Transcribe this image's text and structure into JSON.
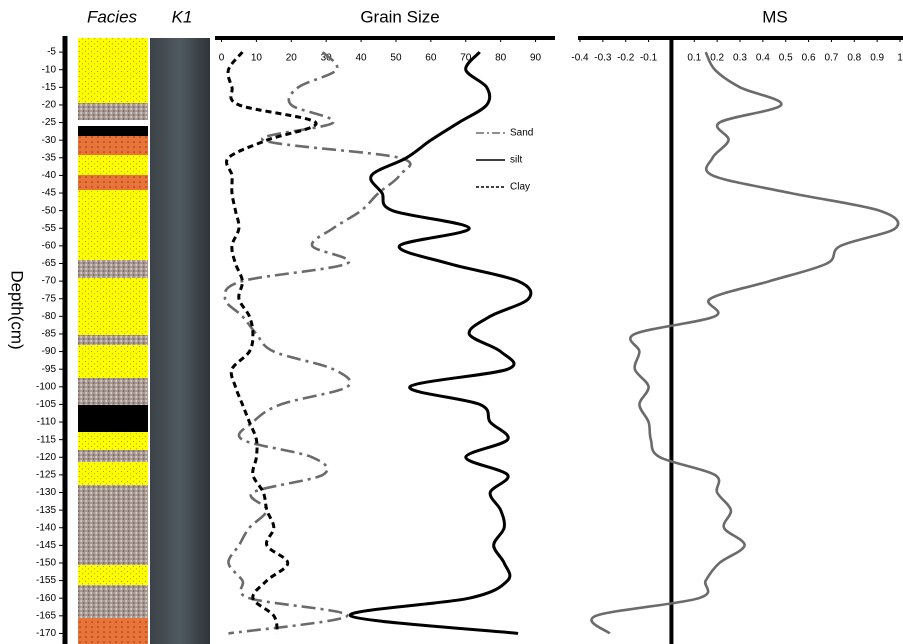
{
  "facies": {
    "title": "Facies"
  },
  "core": {
    "title": "K1"
  },
  "chart_data": [
    {
      "type": "line",
      "orientation": "vertical",
      "title": "Grain Size",
      "ylabel": "Depth(cm)",
      "y": [
        -5,
        -10,
        -15,
        -20,
        -25,
        -30,
        -35,
        -40,
        -45,
        -50,
        -55,
        -60,
        -65,
        -70,
        -75,
        -80,
        -85,
        -90,
        -95,
        -100,
        -105,
        -110,
        -115,
        -120,
        -125,
        -130,
        -135,
        -140,
        -145,
        -150,
        -155,
        -160,
        -165,
        -170
      ],
      "ylim": [
        -1,
        -173
      ],
      "yticks": [
        -5,
        -10,
        -15,
        -20,
        -25,
        -30,
        -35,
        -40,
        -45,
        -50,
        -55,
        -60,
        -65,
        -70,
        -75,
        -80,
        -85,
        -90,
        -95,
        -100,
        -105,
        -110,
        -115,
        -120,
        -125,
        -130,
        -135,
        -140,
        -145,
        -150,
        -155,
        -160,
        -165,
        -170
      ],
      "xlim": [
        -1,
        95
      ],
      "xticks": [
        0,
        10,
        20,
        30,
        40,
        50,
        60,
        70,
        80,
        90
      ],
      "legend": "upper right",
      "series": [
        {
          "name": "Sand",
          "color": "#6b6b6b",
          "style": "dashdot",
          "values": [
            29,
            33,
            22,
            20,
            32,
            12,
            51,
            51,
            45,
            40,
            32,
            26,
            36,
            6,
            1,
            6,
            10,
            15,
            32,
            36,
            17,
            9,
            6,
            26,
            29,
            9,
            13,
            8,
            5,
            2,
            6,
            8,
            36,
            2
          ]
        },
        {
          "name": "silt",
          "color": "#000000",
          "style": "solid",
          "values": [
            74,
            70,
            76,
            76,
            68,
            60,
            53,
            43,
            46,
            49,
            71,
            51,
            65,
            85,
            88,
            77,
            71,
            80,
            82,
            54,
            74,
            77,
            82,
            70,
            82,
            77,
            80,
            81,
            78,
            81,
            82,
            71,
            37,
            85
          ]
        },
        {
          "name": "Clay",
          "color": "#000000",
          "style": "dashed",
          "values": [
            6,
            2,
            3,
            5,
            27,
            13,
            2,
            3,
            3,
            4,
            5,
            3,
            4,
            6,
            5,
            8,
            9,
            8,
            3,
            4,
            6,
            8,
            10,
            10,
            9,
            12,
            13,
            15,
            13,
            19,
            13,
            9,
            15,
            16
          ]
        }
      ]
    },
    {
      "type": "line",
      "orientation": "vertical",
      "title": "MS",
      "zero_line": true,
      "y": [
        -5,
        -10,
        -15,
        -20,
        -25,
        -30,
        -35,
        -40,
        -45,
        -50,
        -55,
        -60,
        -65,
        -70,
        -75,
        -80,
        -85,
        -90,
        -95,
        -100,
        -105,
        -110,
        -115,
        -120,
        -125,
        -130,
        -135,
        -140,
        -145,
        -150,
        -155,
        -160,
        -165,
        -170
      ],
      "ylim": [
        -1,
        -173
      ],
      "xlim": [
        -0.4,
        1
      ],
      "xticks": [
        -0.4,
        -0.3,
        -0.2,
        -0.1,
        0.1,
        0.2,
        0.3,
        0.4,
        0.5,
        0.6,
        0.7,
        0.8,
        0.9,
        1
      ],
      "series": [
        {
          "color": "#6b6b6b",
          "style": "solid",
          "values": [
            0.15,
            0.19,
            0.3,
            0.48,
            0.21,
            0.25,
            0.18,
            0.18,
            0.52,
            0.91,
            0.98,
            0.74,
            0.68,
            0.43,
            0.17,
            0.19,
            -0.16,
            -0.14,
            -0.16,
            -0.1,
            -0.14,
            -0.1,
            -0.09,
            -0.05,
            0.19,
            0.2,
            0.26,
            0.23,
            0.32,
            0.21,
            0.15,
            0.12,
            -0.33,
            -0.27
          ]
        }
      ]
    }
  ]
}
